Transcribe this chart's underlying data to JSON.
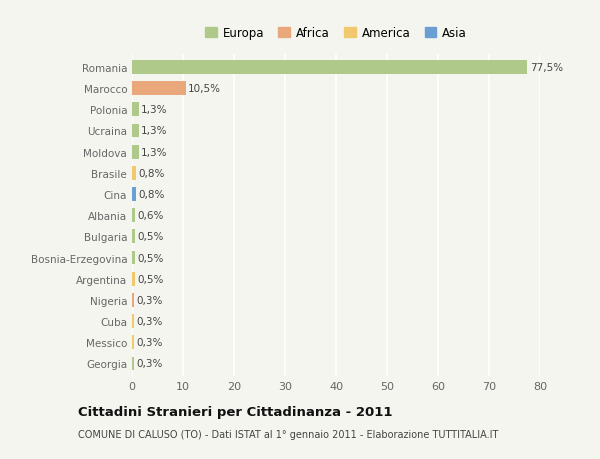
{
  "categories": [
    "Romania",
    "Marocco",
    "Polonia",
    "Ucraina",
    "Moldova",
    "Brasile",
    "Cina",
    "Albania",
    "Bulgaria",
    "Bosnia-Erzegovina",
    "Argentina",
    "Nigeria",
    "Cuba",
    "Messico",
    "Georgia"
  ],
  "values": [
    77.5,
    10.5,
    1.3,
    1.3,
    1.3,
    0.8,
    0.8,
    0.6,
    0.5,
    0.5,
    0.5,
    0.3,
    0.3,
    0.3,
    0.3
  ],
  "continents": [
    "Europa",
    "Africa",
    "Europa",
    "Europa",
    "Europa",
    "America",
    "Asia",
    "Europa",
    "Europa",
    "Europa",
    "America",
    "Africa",
    "America",
    "America",
    "Europa"
  ],
  "labels": [
    "77,5%",
    "10,5%",
    "1,3%",
    "1,3%",
    "1,3%",
    "0,8%",
    "0,8%",
    "0,6%",
    "0,5%",
    "0,5%",
    "0,5%",
    "0,3%",
    "0,3%",
    "0,3%",
    "0,3%"
  ],
  "colors": {
    "Europa": "#aec98a",
    "Africa": "#e8a87c",
    "America": "#f0c96e",
    "Asia": "#6b9fd4"
  },
  "legend_order": [
    "Europa",
    "Africa",
    "America",
    "Asia"
  ],
  "xlim": [
    0,
    80
  ],
  "xticks": [
    0,
    10,
    20,
    30,
    40,
    50,
    60,
    70,
    80
  ],
  "title": "Cittadini Stranieri per Cittadinanza - 2011",
  "subtitle": "COMUNE DI CALUSO (TO) - Dati ISTAT al 1° gennaio 2011 - Elaborazione TUTTITALIA.IT",
  "bg_color": "#f5f5f0",
  "bar_height": 0.65
}
